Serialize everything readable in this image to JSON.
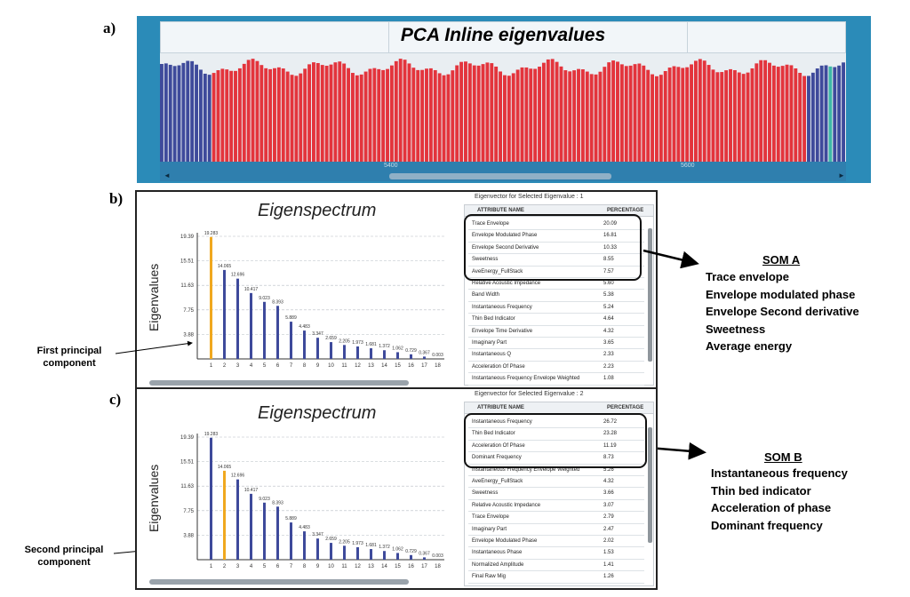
{
  "panels": {
    "a": {
      "label": "a)",
      "title": "PCA Inline eigenvalues",
      "ticks": [
        "5400",
        "5600"
      ],
      "bar_colors": {
        "blue": "#3e4a9b",
        "red": "#e3343c",
        "teal": "#3fb8a8"
      }
    },
    "b": {
      "label": "b)",
      "chart_title": "Eigenspectrum",
      "ylabel": "Eigenvalues",
      "grid_caption": "Eigenvector for Selected Eigenvalue : 1",
      "grid_headers": [
        "ATTRIBUTE NAME",
        "PERCENTAGE"
      ],
      "grid_rows": [
        {
          "name": "Trace Envelope",
          "value": "20.09"
        },
        {
          "name": "Envelope Modulated Phase",
          "value": "16.81"
        },
        {
          "name": "Envelope Second Derivative",
          "value": "10.33"
        },
        {
          "name": "Sweetness",
          "value": "8.55"
        },
        {
          "name": "AveEnergy_FullStack",
          "value": "7.57"
        },
        {
          "name": "Relative Acoustic Impedance",
          "value": "5.60"
        },
        {
          "name": "Band Width",
          "value": "5.38"
        },
        {
          "name": "Instantaneous Frequency",
          "value": "5.24"
        },
        {
          "name": "Thin Bed Indicator",
          "value": "4.64"
        },
        {
          "name": "Envelope Time Derivative",
          "value": "4.32"
        },
        {
          "name": "Imaginary Part",
          "value": "3.65"
        },
        {
          "name": "Instantaneous Q",
          "value": "2.33"
        },
        {
          "name": "Acceleration Of Phase",
          "value": "2.23"
        },
        {
          "name": "Instantaneous Frequency Envelope Weighted",
          "value": "1.08"
        }
      ],
      "highlight_index": 0,
      "som_title": "SOM A",
      "som_items": [
        "Trace envelope",
        "Envelope modulated phase",
        "Envelope  Second derivative",
        "Sweetness",
        "Average energy"
      ],
      "component_label": [
        "First principal",
        "component"
      ]
    },
    "c": {
      "label": "c)",
      "chart_title": "Eigenspectrum",
      "ylabel": "Eigenvalues",
      "grid_caption": "Eigenvector for Selected Eigenvalue : 2",
      "grid_headers": [
        "ATTRIBUTE NAME",
        "PERCENTAGE"
      ],
      "grid_rows": [
        {
          "name": "Instantaneous Frequency",
          "value": "26.72"
        },
        {
          "name": "Thin Bed Indicator",
          "value": "23.28"
        },
        {
          "name": "Acceleration Of Phase",
          "value": "11.19"
        },
        {
          "name": "Dominant Frequency",
          "value": "8.73"
        },
        {
          "name": "Instantaneous Frequency Envelope Weighted",
          "value": "5.26"
        },
        {
          "name": "AveEnergy_FullStack",
          "value": "4.32"
        },
        {
          "name": "Sweetness",
          "value": "3.66"
        },
        {
          "name": "Relative Acoustic Impedance",
          "value": "3.07"
        },
        {
          "name": "Trace Envelope",
          "value": "2.79"
        },
        {
          "name": "Imaginary Part",
          "value": "2.47"
        },
        {
          "name": "Envelope Modulated Phase",
          "value": "2.02"
        },
        {
          "name": "Instantaneous Phase",
          "value": "1.53"
        },
        {
          "name": "Normalized Amplitude",
          "value": "1.41"
        },
        {
          "name": "Final Raw Mig",
          "value": "1.26"
        }
      ],
      "highlight_index": 1,
      "som_title": "SOM B",
      "som_items": [
        "Instantaneous frequency",
        "Thin bed indicator",
        "Acceleration of phase",
        "Dominant  frequency"
      ],
      "component_label": [
        "Second principal",
        "component"
      ]
    }
  },
  "chart_data": {
    "type": "bar",
    "categories": [
      "1",
      "2",
      "3",
      "4",
      "5",
      "6",
      "7",
      "8",
      "9",
      "10",
      "11",
      "12",
      "13",
      "14",
      "15",
      "16",
      "17",
      "18"
    ],
    "values": [
      19.283,
      14.065,
      12.696,
      10.417,
      9.023,
      8.393,
      5.889,
      4.483,
      3.347,
      2.659,
      2.205,
      1.973,
      1.681,
      1.372,
      1.062,
      0.729,
      0.367,
      0.003
    ],
    "value_labels": [
      "19.283",
      "14.065",
      "12.696",
      "10.417",
      "9.023",
      "8.393",
      "5.889",
      "4.483",
      "3.347",
      "2.659",
      "2.205",
      "1.973",
      "1.681",
      "1.372",
      "1.062",
      "0.729",
      "0.367",
      "0.003"
    ],
    "yticks": [
      "3.88",
      "7.75",
      "11.63",
      "15.51",
      "19.39"
    ],
    "ytick_values": [
      3.88,
      7.75,
      11.63,
      15.51,
      19.39
    ],
    "ylim": [
      0,
      19.39
    ],
    "colors": {
      "bar": "#3e4a9b",
      "selected": "#f0a81f"
    }
  }
}
